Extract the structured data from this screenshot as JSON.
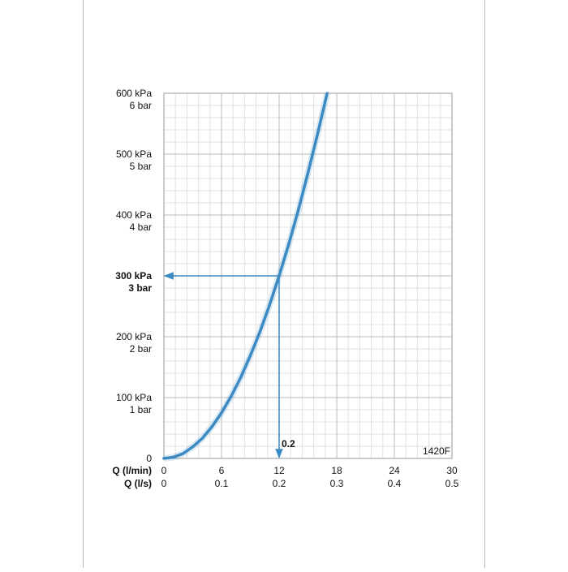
{
  "chart_data": {
    "type": "line",
    "xlabel": "Q (l/min)",
    "x2label": "Q (l/s)",
    "xlim": [
      0,
      30
    ],
    "xticks": [
      0,
      6,
      12,
      18,
      24,
      30
    ],
    "x2lim": [
      0,
      0.5
    ],
    "x2ticks": [
      0,
      0.1,
      0.2,
      0.3,
      0.4,
      0.5
    ],
    "ylim": [
      0,
      600
    ],
    "yticks": [
      0,
      {
        "value": 100,
        "label": "100 kPa"
      },
      {
        "value": 200,
        "label": "200 kPa"
      },
      {
        "value": 300,
        "label": "300 kPa"
      },
      {
        "value": 400,
        "label": "400 kPa"
      },
      {
        "value": 500,
        "label": "500 kPa"
      },
      {
        "value": 600,
        "label": "600 kPa"
      }
    ],
    "y2lim": [
      0,
      6
    ],
    "y2ticks": [
      {
        "value": 1,
        "label": "1 bar"
      },
      {
        "value": 2,
        "label": "2 bar"
      },
      {
        "value": 3,
        "label": "3 bar"
      },
      {
        "value": 4,
        "label": "4 bar"
      },
      {
        "value": 5,
        "label": "5 bar"
      },
      {
        "value": 6,
        "label": "6 bar"
      }
    ],
    "grid": true,
    "minor_divisions": 5,
    "series": [
      {
        "color": "#3b8ac4",
        "x": [
          0,
          1,
          2,
          3,
          4,
          5,
          6,
          7,
          8,
          9,
          10,
          11,
          12,
          13,
          14,
          15,
          16,
          17
        ],
        "values": [
          0,
          2,
          8,
          19,
          33,
          52,
          75,
          102,
          133,
          169,
          208,
          252,
          300,
          352,
          408,
          469,
          533,
          600
        ]
      }
    ],
    "highlight": {
      "x": 12,
      "y": 300,
      "color": "#3b8ac4"
    },
    "annotations": [
      {
        "text": "0.2"
      },
      {
        "text": "1420F"
      }
    ]
  }
}
